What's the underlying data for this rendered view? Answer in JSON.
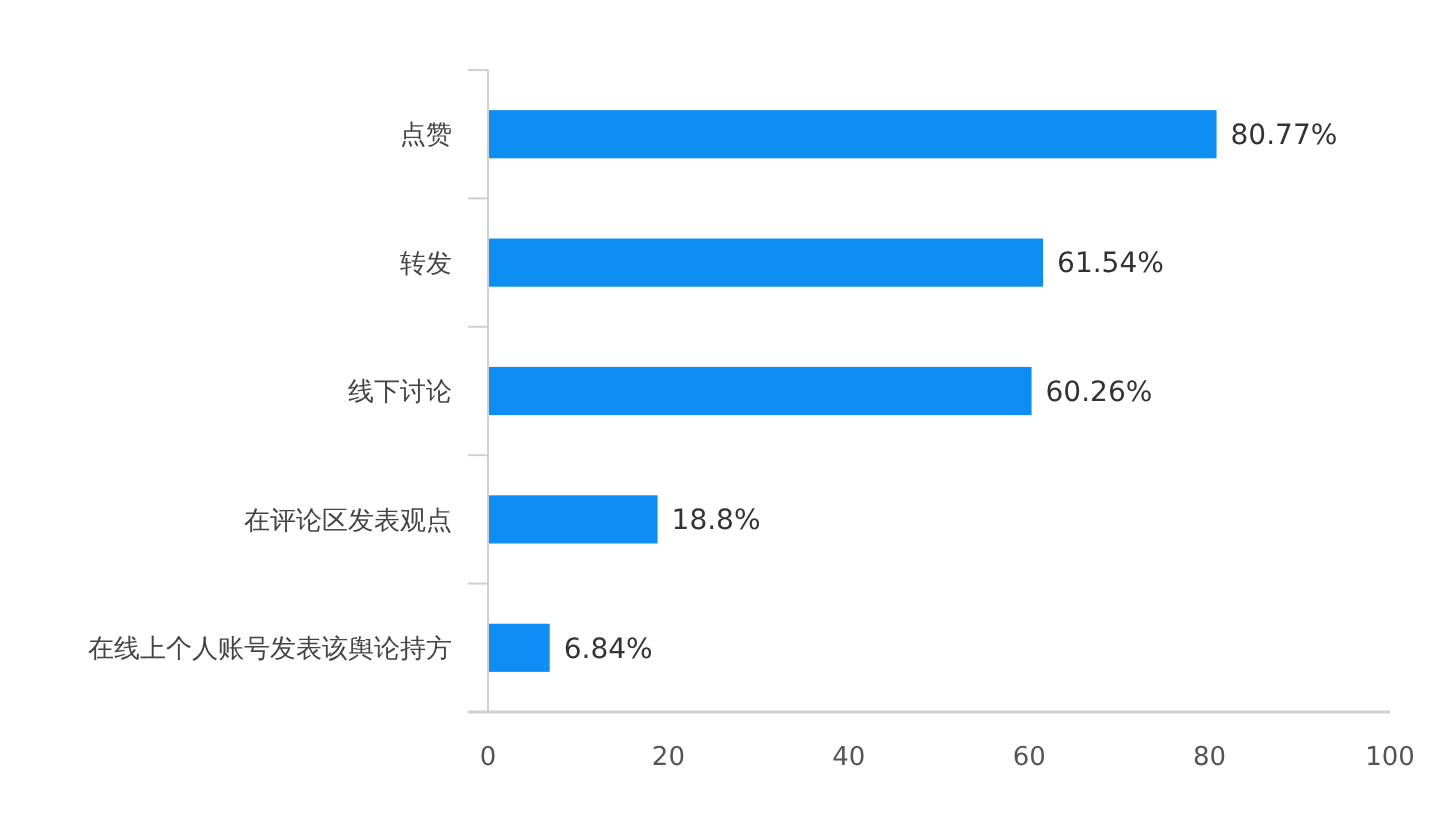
{
  "chart_data": {
    "type": "bar",
    "orientation": "horizontal",
    "categories": [
      "点赞",
      "转发",
      "线下讨论",
      "在评论区发表观点",
      "在线上个人账号发表该舆论持方"
    ],
    "values": [
      80.77,
      61.54,
      60.26,
      18.8,
      6.84
    ],
    "color": "#0d8ef2",
    "value_labels": [
      "80.77%",
      "61.54%",
      "60.26%",
      "18.8%",
      "6.84%"
    ],
    "xlim": [
      0,
      100
    ],
    "xticks": [
      0,
      20,
      40,
      60,
      80,
      100
    ]
  }
}
